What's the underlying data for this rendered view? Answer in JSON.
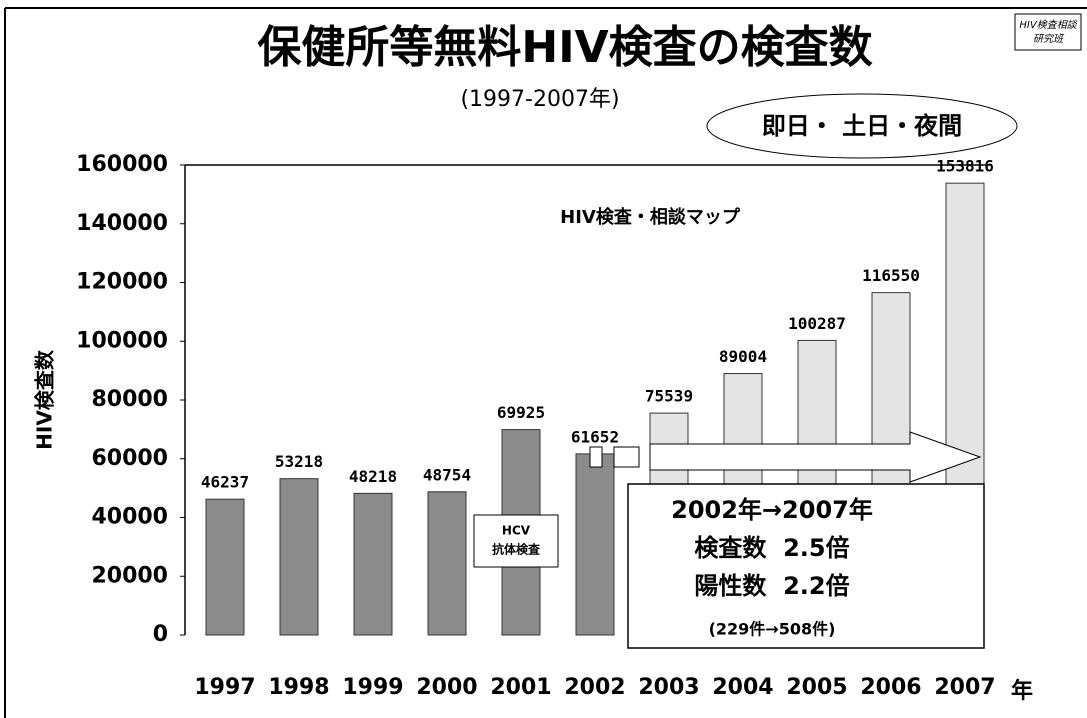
{
  "chart_data": {
    "type": "bar",
    "title": "保健所等無料HIV検査の検査数",
    "subtitle": "(1997-2007年)",
    "y_label": "HIV検査数",
    "x_unit": "年",
    "logo": [
      "HIV検査相談",
      "研究班"
    ],
    "categories": [
      "1997",
      "1998",
      "1999",
      "2000",
      "2001",
      "2002",
      "2003",
      "2004",
      "2005",
      "2006",
      "2007"
    ],
    "values": [
      46237,
      53218,
      48218,
      48754,
      69925,
      61652,
      75539,
      89004,
      100287,
      116550,
      153816
    ],
    "colors": [
      "#8c8c8c",
      "#8c8c8c",
      "#8c8c8c",
      "#8c8c8c",
      "#8c8c8c",
      "#8c8c8c",
      "#e4e4e4",
      "#e4e4e4",
      "#e4e4e4",
      "#e4e4e4",
      "#e4e4e4"
    ],
    "ylim": [
      0,
      160000
    ],
    "yticks": [
      0,
      20000,
      40000,
      60000,
      80000,
      100000,
      120000,
      140000,
      160000
    ],
    "annotations": {
      "oval": "即日・ 土日・夜間",
      "map": "HIV検査・相談マップ",
      "hcv": [
        "HCV",
        "抗体検査"
      ],
      "box": [
        "2002年→2007年",
        "検査数  2.5倍",
        "陽性数  2.2倍",
        "(229件→508件)"
      ]
    }
  }
}
